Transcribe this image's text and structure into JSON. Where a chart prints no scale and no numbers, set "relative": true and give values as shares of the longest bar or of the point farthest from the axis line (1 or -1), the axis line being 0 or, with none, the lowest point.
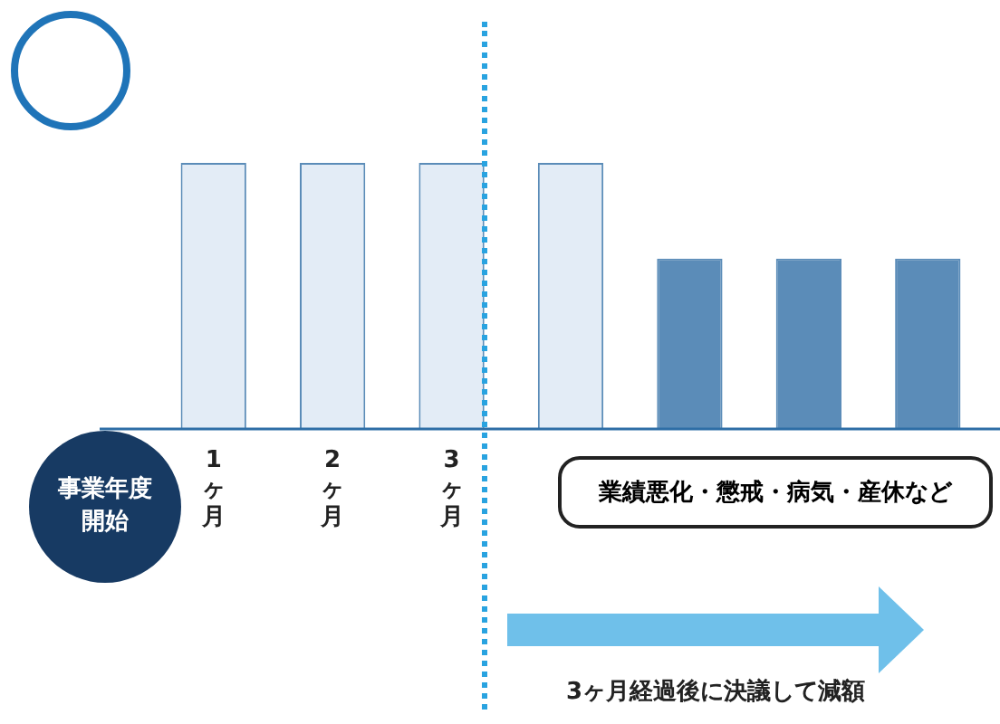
{
  "chart_data": {
    "type": "bar",
    "relative": true,
    "categories": [
      "1ヶ月",
      "2ヶ月",
      "3ヶ月",
      null,
      null,
      null,
      null
    ],
    "values": [
      1,
      1,
      1,
      1,
      0.64,
      0.64,
      0.64
    ],
    "colors": [
      "#e3ecf6",
      "#e3ecf6",
      "#e3ecf6",
      "#e3ecf6",
      "#5b8cb8",
      "#5b8cb8",
      "#5b8cb8"
    ],
    "annotations": [
      "事業年度開始",
      "業績悪化・懲戒・病気・産休など",
      "3ヶ月経過後に決議して減額"
    ],
    "grid": false,
    "legend": false
  }
}
